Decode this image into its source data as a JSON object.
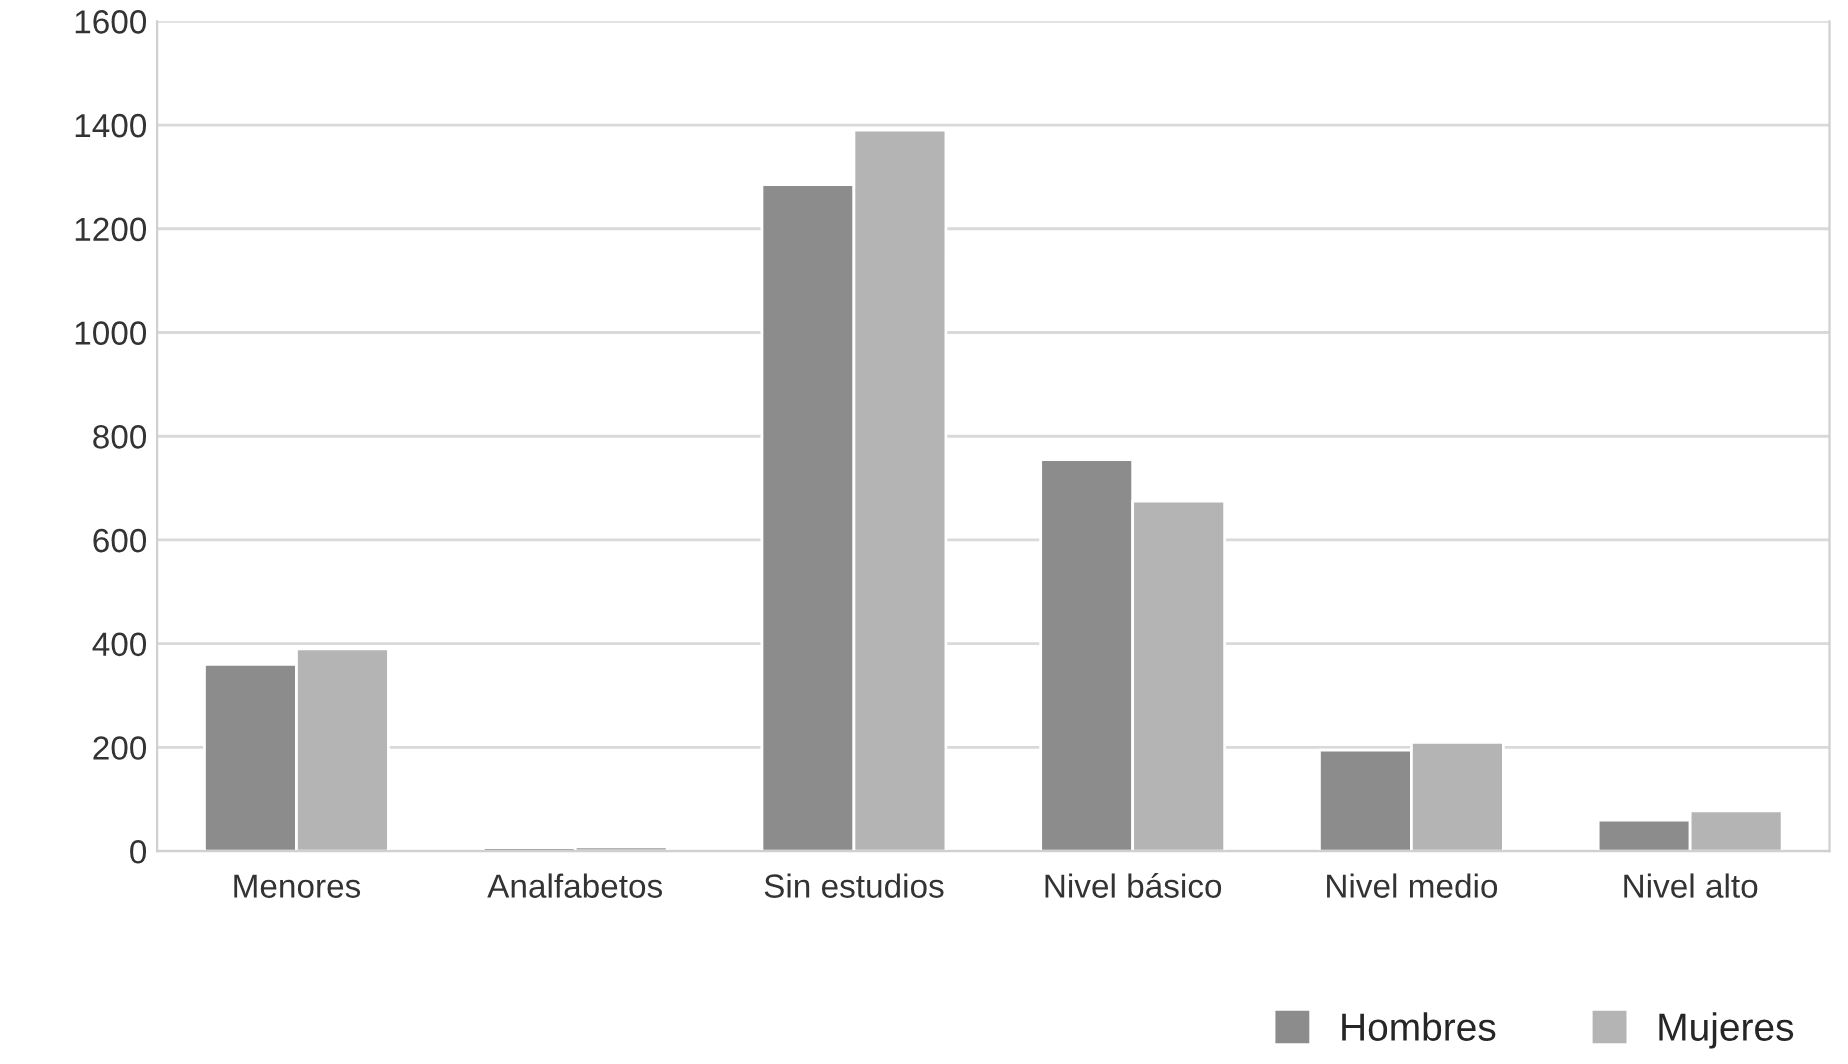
{
  "chart_data": {
    "type": "bar",
    "categories": [
      "Menores",
      "Analfabetos",
      "Sin estudios",
      "Nivel básico",
      "Nivel medio",
      "Nivel alto"
    ],
    "series": [
      {
        "name": "Hombres",
        "color": "#8c8c8c",
        "values": [
          360,
          7,
          1285,
          755,
          195,
          60
        ]
      },
      {
        "name": "Mujeres",
        "color": "#b4b4b4",
        "values": [
          390,
          9,
          1390,
          675,
          210,
          78
        ]
      }
    ],
    "ylim": [
      0,
      1600
    ],
    "yticks": [
      0,
      200,
      400,
      600,
      800,
      1000,
      1200,
      1400,
      1600
    ],
    "grid": "y",
    "legend": "bottom right"
  }
}
